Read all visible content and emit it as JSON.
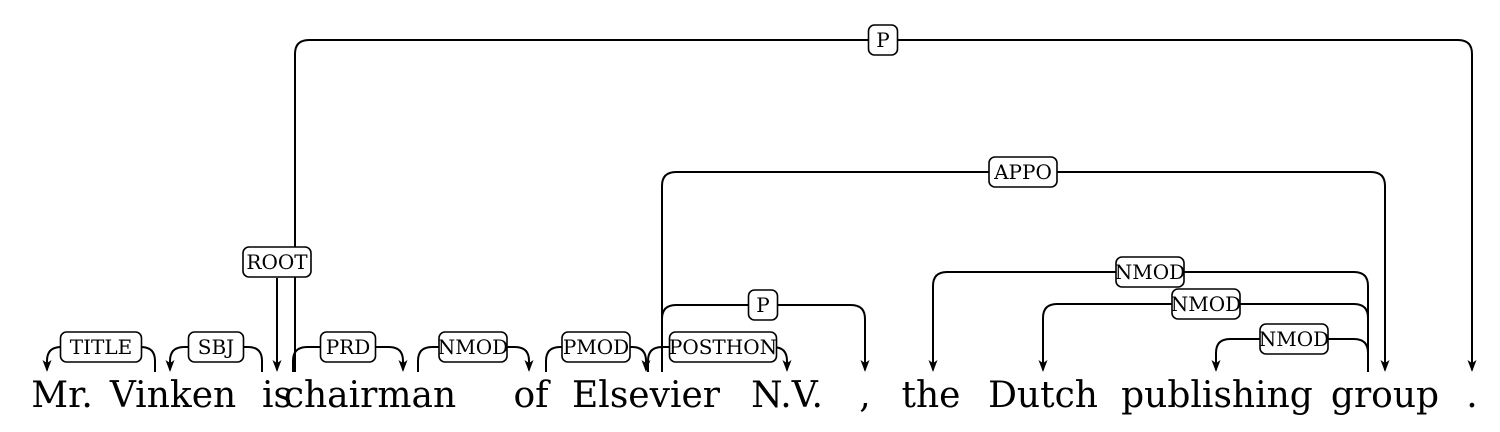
{
  "tokens": [
    "Mr.",
    "Vinken",
    "is",
    "chairman",
    "of",
    "Elsevier",
    "N.V.",
    ",",
    "the",
    "Dutch",
    "publishing",
    "group",
    "."
  ],
  "root": {
    "token": 2,
    "label": "ROOT"
  },
  "arcs": [
    {
      "head": 1,
      "dep": 0,
      "label": "TITLE"
    },
    {
      "head": 2,
      "dep": 1,
      "label": "SBJ"
    },
    {
      "head": 2,
      "dep": 3,
      "label": "PRD"
    },
    {
      "head": 3,
      "dep": 4,
      "label": "NMOD"
    },
    {
      "head": 4,
      "dep": 5,
      "label": "PMOD"
    },
    {
      "head": 5,
      "dep": 6,
      "label": "POSTHON"
    },
    {
      "head": 5,
      "dep": 7,
      "label": "P"
    },
    {
      "head": 5,
      "dep": 11,
      "label": "APPO"
    },
    {
      "head": 11,
      "dep": 8,
      "label": "NMOD"
    },
    {
      "head": 11,
      "dep": 9,
      "label": "NMOD"
    },
    {
      "head": 11,
      "dep": 10,
      "label": "NMOD"
    },
    {
      "head": 2,
      "dep": 12,
      "label": "P"
    }
  ]
}
